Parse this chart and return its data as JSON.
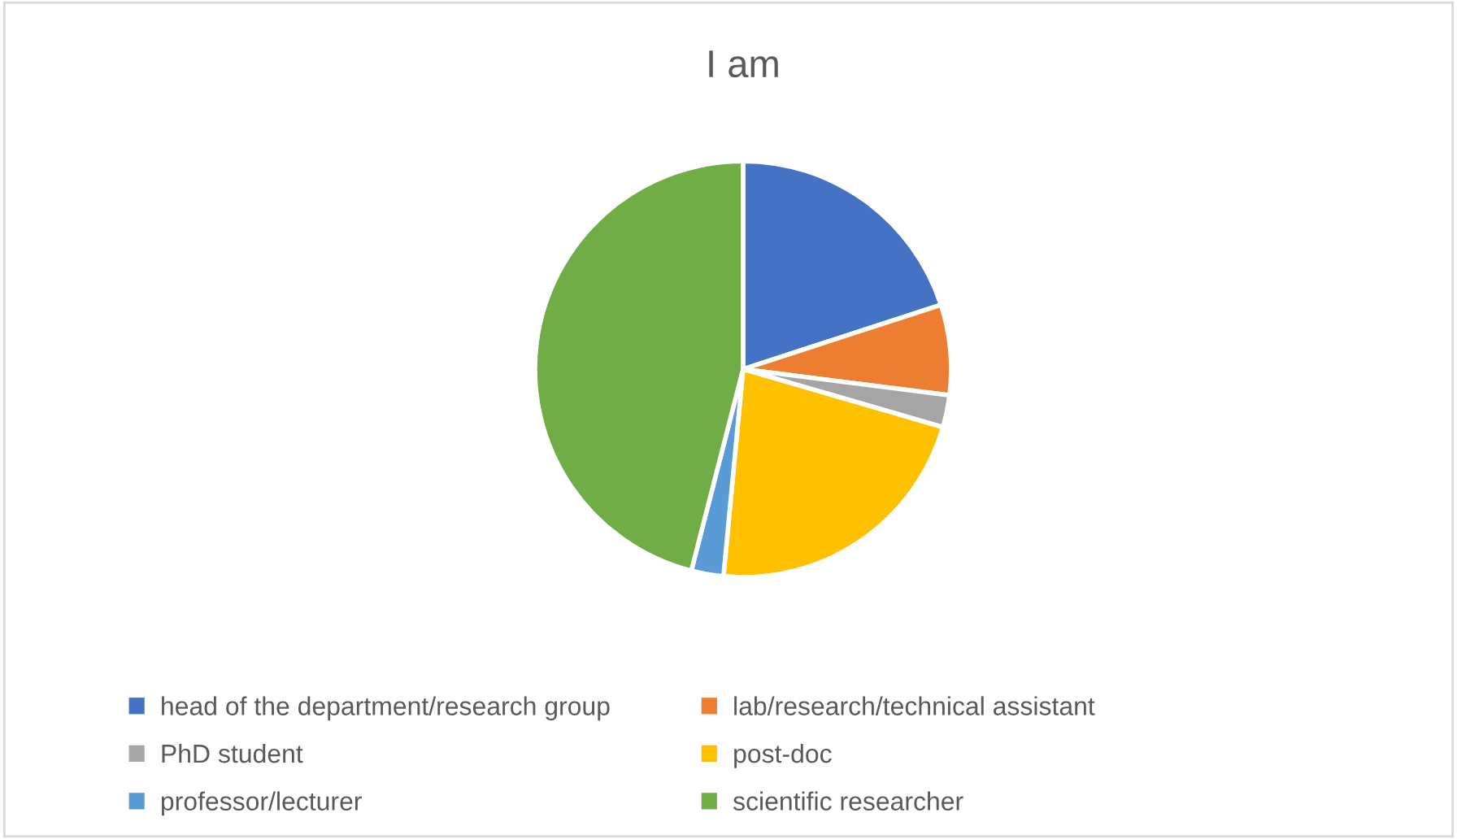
{
  "chart_data": {
    "type": "pie",
    "title": "I am",
    "categories": [
      "head of the department/research group",
      "lab/research/technical assistant",
      "PhD student",
      "post-doc",
      "professor/lecturer",
      "scientific researcher"
    ],
    "values": [
      20,
      7,
      2.5,
      22,
      2.5,
      46
    ],
    "colors": [
      "#4472c4",
      "#ed7d31",
      "#a5a5a5",
      "#ffc000",
      "#5b9bd5",
      "#70ad47"
    ],
    "legend": "bottom"
  }
}
